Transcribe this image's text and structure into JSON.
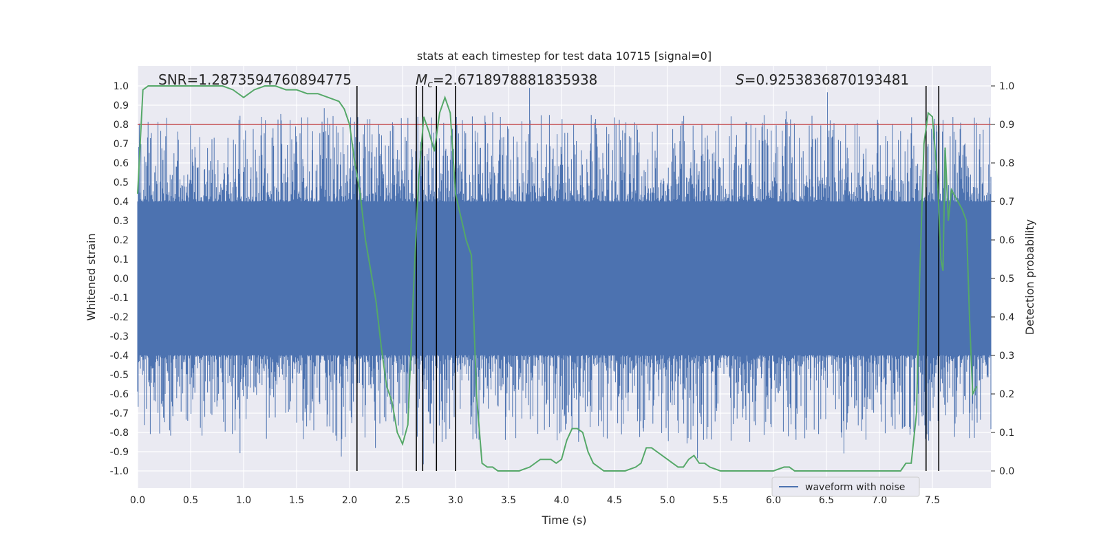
{
  "chart_data": {
    "type": "line",
    "title": "stats at each timestep for test data 10715 [signal=0]",
    "xlabel": "Time (s)",
    "ylabel": "Whitened strain",
    "y2label": "Detection probability",
    "xlim": [
      0.0,
      8.0
    ],
    "ylim": [
      -1.1,
      1.1
    ],
    "y2lim": [
      -0.05,
      1.05
    ],
    "xticks": [
      0.0,
      0.5,
      1.0,
      1.5,
      2.0,
      2.5,
      3.0,
      3.5,
      4.0,
      4.5,
      5.0,
      5.5,
      6.0,
      6.5,
      7.0,
      7.5
    ],
    "xtick_labels": [
      "0.0",
      "0.5",
      "1.0",
      "1.5",
      "2.0",
      "2.5",
      "3.0",
      "3.5",
      "4.0",
      "4.5",
      "5.0",
      "5.5",
      "6.0",
      "6.5",
      "7.0",
      "7.5"
    ],
    "yticks": [
      1.0,
      0.9,
      0.8,
      0.7,
      0.6,
      0.5,
      0.4,
      0.3,
      0.2,
      0.1,
      0.0,
      -0.1,
      -0.2,
      -0.3,
      -0.4,
      -0.5,
      -0.6,
      -0.7,
      -0.8,
      -0.9,
      -1.0
    ],
    "ytick_labels": [
      "1.0",
      "0.9",
      "0.8",
      "0.7",
      "0.6",
      "0.5",
      "0.4",
      "0.3",
      "0.2",
      "0.1",
      "0.0",
      "-0.1",
      "-0.2",
      "-0.3",
      "-0.4",
      "-0.5",
      "-0.6",
      "-0.7",
      "-0.8",
      "-0.9",
      "-1.0"
    ],
    "y2ticks": [
      1.0,
      0.9,
      0.8,
      0.7,
      0.6,
      0.5,
      0.4,
      0.3,
      0.2,
      0.1,
      0.0
    ],
    "y2tick_labels": [
      "1.0",
      "0.9",
      "0.8",
      "0.7",
      "0.6",
      "0.5",
      "0.4",
      "0.3",
      "0.2",
      "0.1",
      "0.0"
    ],
    "grid": true,
    "legend": {
      "placement": "lower-right",
      "entries": [
        "waveform with noise"
      ]
    },
    "annotations": {
      "snr": "SNR=1.2873594760894775",
      "mc_symbol": "M",
      "mc_sub": "c",
      "mc_value": "=2.6718978881835938",
      "s_symbol": "S",
      "s_value": "=0.9253836870193481"
    },
    "threshold": {
      "y": 0.8,
      "color": "#c44e52"
    },
    "event_lines_x": [
      2.07,
      2.63,
      2.69,
      2.82,
      3.0,
      7.44,
      7.56
    ],
    "series": [
      {
        "name": "waveform with noise",
        "color": "#4c72b0",
        "description_levels": {
          "band": 0.4,
          "spike_max": 1.0,
          "spike_min": -0.98
        }
      },
      {
        "color": "#55a868",
        "axis": "right",
        "x": [
          0.0,
          0.05,
          0.1,
          0.2,
          0.3,
          0.4,
          0.5,
          0.6,
          0.7,
          0.8,
          0.9,
          1.0,
          1.05,
          1.1,
          1.2,
          1.3,
          1.4,
          1.5,
          1.6,
          1.7,
          1.8,
          1.9,
          1.95,
          2.0,
          2.05,
          2.1,
          2.15,
          2.2,
          2.25,
          2.3,
          2.35,
          2.4,
          2.45,
          2.5,
          2.55,
          2.6,
          2.65,
          2.7,
          2.75,
          2.8,
          2.85,
          2.9,
          2.95,
          3.0,
          3.05,
          3.1,
          3.15,
          3.2,
          3.25,
          3.3,
          3.35,
          3.4,
          3.45,
          3.5,
          3.55,
          3.6,
          3.7,
          3.8,
          3.9,
          3.95,
          4.0,
          4.05,
          4.1,
          4.15,
          4.2,
          4.25,
          4.3,
          4.35,
          4.4,
          4.5,
          4.6,
          4.7,
          4.75,
          4.8,
          4.85,
          4.9,
          4.95,
          5.0,
          5.05,
          5.1,
          5.15,
          5.2,
          5.25,
          5.3,
          5.35,
          5.4,
          5.5,
          5.55,
          5.6,
          5.7,
          5.8,
          5.9,
          6.0,
          6.1,
          6.15,
          6.2,
          6.3,
          6.4,
          6.5,
          6.6,
          6.7,
          6.8,
          6.9,
          7.0,
          7.1,
          7.2,
          7.25,
          7.3,
          7.35,
          7.38,
          7.42,
          7.46,
          7.5,
          7.55,
          7.58,
          7.6,
          7.62,
          7.65,
          7.68,
          7.72,
          7.78,
          7.82,
          7.85,
          7.88,
          7.92
        ],
        "values": [
          0.72,
          0.99,
          1.0,
          1.0,
          1.0,
          1.0,
          1.0,
          1.0,
          1.0,
          1.0,
          0.99,
          0.97,
          0.98,
          0.99,
          1.0,
          1.0,
          0.99,
          0.99,
          0.98,
          0.98,
          0.97,
          0.96,
          0.94,
          0.9,
          0.8,
          0.72,
          0.6,
          0.52,
          0.44,
          0.32,
          0.22,
          0.18,
          0.1,
          0.07,
          0.12,
          0.45,
          0.75,
          0.92,
          0.88,
          0.83,
          0.93,
          0.97,
          0.93,
          0.72,
          0.66,
          0.6,
          0.56,
          0.19,
          0.02,
          0.01,
          0.01,
          0.0,
          0.0,
          0.0,
          0.0,
          0.0,
          0.01,
          0.03,
          0.03,
          0.02,
          0.03,
          0.08,
          0.11,
          0.11,
          0.1,
          0.05,
          0.02,
          0.01,
          0.0,
          0.0,
          0.0,
          0.01,
          0.02,
          0.06,
          0.06,
          0.05,
          0.04,
          0.03,
          0.02,
          0.01,
          0.01,
          0.03,
          0.04,
          0.02,
          0.02,
          0.01,
          0.0,
          0.0,
          0.0,
          0.0,
          0.0,
          0.0,
          0.0,
          0.01,
          0.01,
          0.0,
          0.0,
          0.0,
          0.0,
          0.0,
          0.0,
          0.0,
          0.0,
          0.0,
          0.0,
          0.0,
          0.02,
          0.02,
          0.15,
          0.5,
          0.85,
          0.93,
          0.92,
          0.75,
          0.55,
          0.52,
          0.84,
          0.65,
          0.73,
          0.71,
          0.68,
          0.65,
          0.4,
          0.2,
          0.22
        ]
      }
    ]
  }
}
